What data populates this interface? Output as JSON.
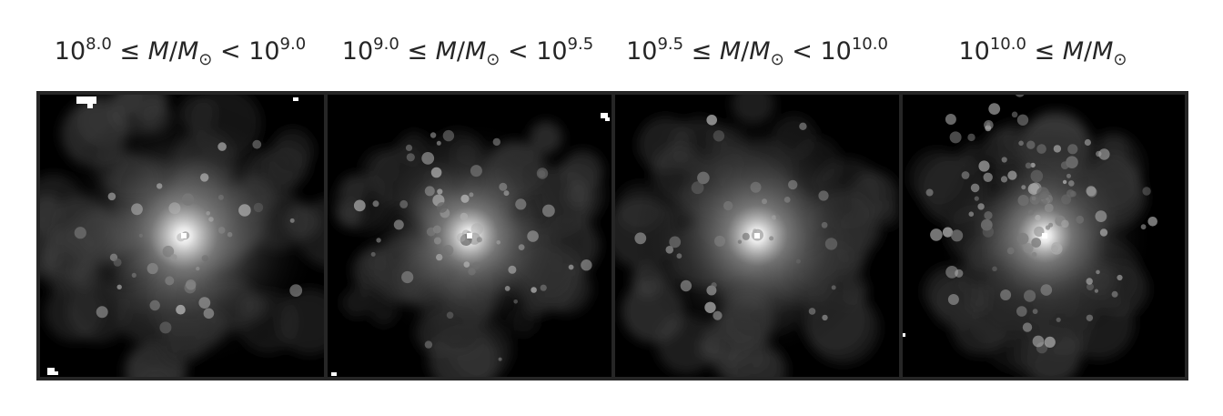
{
  "figure": {
    "panels": [
      {
        "id": "panel-1",
        "title": {
          "a": "10",
          "a_exp": "8.0",
          "rel1": " ≤ ",
          "m": "M",
          "slash": "/",
          "msun": "M",
          "sun_sub": "⊙",
          "rel2": " < ",
          "b": "10",
          "b_exp": "9.0"
        },
        "image": "grayscale-halo-density-map"
      },
      {
        "id": "panel-2",
        "title": {
          "a": "10",
          "a_exp": "9.0",
          "rel1": " ≤ ",
          "m": "M",
          "slash": "/",
          "msun": "M",
          "sun_sub": "⊙",
          "rel2": " < ",
          "b": "10",
          "b_exp": "9.5"
        },
        "image": "grayscale-halo-density-map"
      },
      {
        "id": "panel-3",
        "title": {
          "a": "10",
          "a_exp": "9.5",
          "rel1": " ≤ ",
          "m": "M",
          "slash": "/",
          "msun": "M",
          "sun_sub": "⊙",
          "rel2": " < ",
          "b": "10",
          "b_exp": "10.0"
        },
        "image": "grayscale-halo-density-map"
      },
      {
        "id": "panel-4",
        "title": {
          "a": "10",
          "a_exp": "10.0",
          "rel1": " ≤ ",
          "m": "M",
          "slash": "/",
          "msun": "M",
          "sun_sub": "⊙"
        },
        "image": "grayscale-halo-density-map"
      }
    ],
    "colors": {
      "frame": "#262626",
      "title": "#262626",
      "background": "#000000",
      "halo_core": "#ffffff"
    }
  }
}
